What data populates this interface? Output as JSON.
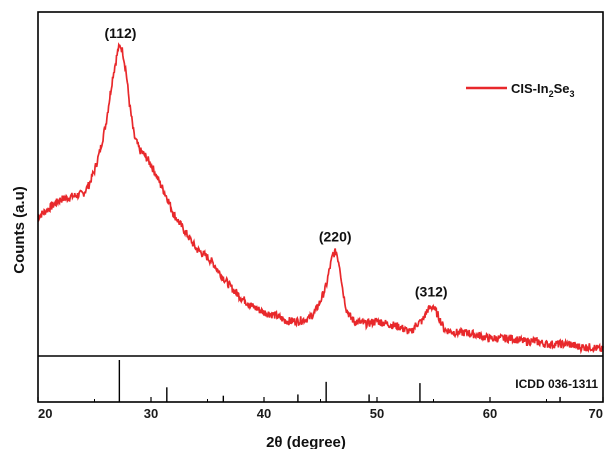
{
  "chart_data": {
    "type": "line",
    "title": "",
    "xlabel": "2θ (degree)",
    "ylabel": "Counts (a.u)",
    "xlim": [
      20,
      70
    ],
    "xticks": [
      "20",
      "30",
      "40",
      "50",
      "60",
      "70"
    ],
    "grid": false,
    "legend_position": "top-right",
    "series": [
      {
        "name": "CIS-In2Se3",
        "legend_main": "CIS-In",
        "legend_sub1": "2",
        "legend_mid": "Se",
        "legend_sub2": "3",
        "color": "#e8282b",
        "x": [
          20,
          21,
          22,
          23,
          24,
          24.5,
          25,
          25.5,
          26,
          26.3,
          26.6,
          26.9,
          27.1,
          27.3,
          27.5,
          27.8,
          28.1,
          28.5,
          29,
          29.5,
          30,
          30.5,
          31,
          31.5,
          32,
          33,
          34,
          35,
          35.5,
          36,
          37,
          38,
          39,
          40,
          41,
          42,
          43,
          44,
          44.5,
          45,
          45.5,
          45.8,
          46.1,
          46.4,
          46.7,
          47,
          47.3,
          47.7,
          48,
          49,
          50,
          51,
          52,
          53,
          53.5,
          54,
          54.5,
          55,
          55.5,
          56,
          57,
          58,
          59,
          60,
          61,
          62,
          63,
          64,
          65,
          66,
          67,
          68,
          69,
          70
        ],
        "y": [
          0.46,
          0.49,
          0.52,
          0.53,
          0.54,
          0.57,
          0.62,
          0.69,
          0.78,
          0.86,
          0.94,
          1.0,
          1.04,
          1.05,
          1.03,
          0.96,
          0.85,
          0.74,
          0.69,
          0.67,
          0.64,
          0.6,
          0.56,
          0.52,
          0.47,
          0.41,
          0.35,
          0.32,
          0.3,
          0.27,
          0.22,
          0.18,
          0.15,
          0.13,
          0.12,
          0.1,
          0.1,
          0.11,
          0.13,
          0.17,
          0.22,
          0.28,
          0.33,
          0.34,
          0.29,
          0.2,
          0.14,
          0.11,
          0.1,
          0.09,
          0.1,
          0.09,
          0.08,
          0.06,
          0.09,
          0.1,
          0.14,
          0.15,
          0.11,
          0.07,
          0.06,
          0.06,
          0.05,
          0.04,
          0.04,
          0.04,
          0.03,
          0.03,
          0.02,
          0.02,
          0.02,
          0.01,
          0.01,
          0.0
        ]
      }
    ],
    "annotations": [
      {
        "text": "(112)",
        "x": 27.3,
        "y": 1.05
      },
      {
        "text": "(220)",
        "x": 46.3,
        "y": 0.34
      },
      {
        "text": "(312)",
        "x": 54.8,
        "y": 0.15
      }
    ],
    "reference_pattern": {
      "label": "ICDD 036-1311",
      "positions": [
        27.2,
        31.4,
        36.4,
        43.0,
        45.5,
        49.3,
        53.8,
        66.2
      ],
      "intensities": [
        1.0,
        0.35,
        0.15,
        0.18,
        0.48,
        0.18,
        0.45,
        0.12
      ]
    }
  }
}
